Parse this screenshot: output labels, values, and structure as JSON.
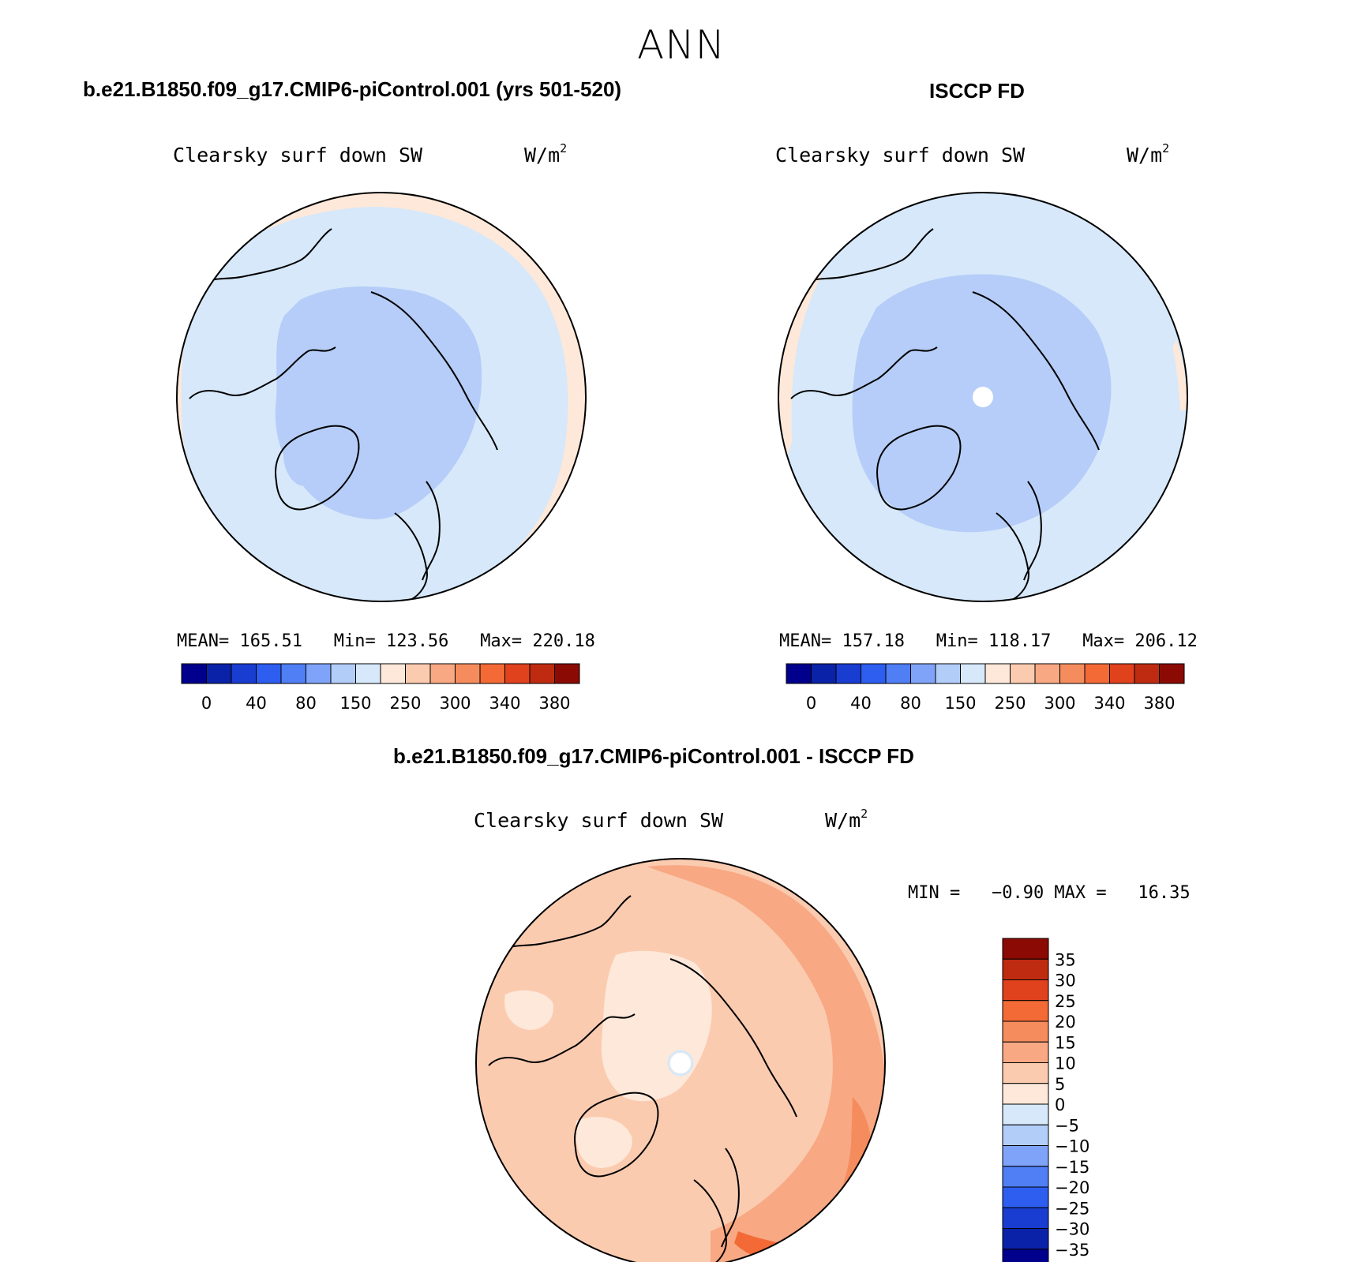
{
  "season": "ANN",
  "colors": {
    "map_bg_light": "#d6e8fa",
    "map_polar": "#b5cdf8",
    "map_rim": "#fde8d9",
    "diff_base": "#fbcbb0",
    "diff_light": "#fde8d9",
    "diff_mid": "#f8a883",
    "diff_strong": "#f58c5e",
    "diff_stronger": "#f36a36"
  },
  "panels": [
    {
      "title": "b.e21.B1850.f09_g17.CMIP6-piControl.001 (yrs 501-520)",
      "variable": "Clearsky surf down SW",
      "units": "W/m",
      "units_sup": "2",
      "mean_label": "MEAN=",
      "mean": "165.51",
      "min_label": "Min=",
      "min": "123.56",
      "max_label": "Max=",
      "max": "220.18"
    },
    {
      "title": "ISCCP FD",
      "variable": "Clearsky surf down SW",
      "units": "W/m",
      "units_sup": "2",
      "mean_label": "MEAN=",
      "mean": "157.18",
      "min_label": "Min=",
      "min": "118.17",
      "max_label": "Max=",
      "max": "206.12"
    }
  ],
  "diff_panel": {
    "title": "b.e21.B1850.f09_g17.CMIP6-piControl.001 - ISCCP FD",
    "variable": "Clearsky surf down SW",
    "units": "W/m",
    "units_sup": "2",
    "minmax_text": "MIN =   −0.90 MAX =   16.35"
  },
  "chart_data": [
    {
      "type": "heatmap",
      "projection": "north polar stereographic",
      "title": "b.e21.B1850.f09_g17.CMIP6-piControl.001 (yrs 501-520)",
      "variable": "Clearsky surf down SW",
      "units": "W/m2",
      "stats": {
        "mean": 165.51,
        "min": 123.56,
        "max": 220.18
      },
      "colorbar": {
        "orientation": "horizontal",
        "colors": [
          "#00008c",
          "#0a22a8",
          "#1a3dd1",
          "#2d5ef0",
          "#4f7ef5",
          "#7fa3f8",
          "#b3cdf9",
          "#d6e8fa",
          "#fde8d9",
          "#fbcbb0",
          "#f8a883",
          "#f58c5e",
          "#f36a36",
          "#e0421e",
          "#bf2b10",
          "#8c0a04"
        ],
        "tick_labels": [
          "0",
          "40",
          "80",
          "150",
          "250",
          "300",
          "340",
          "380"
        ]
      }
    },
    {
      "type": "heatmap",
      "projection": "north polar stereographic",
      "title": "ISCCP FD",
      "variable": "Clearsky surf down SW",
      "units": "W/m2",
      "stats": {
        "mean": 157.18,
        "min": 118.17,
        "max": 206.12
      },
      "colorbar": {
        "orientation": "horizontal",
        "colors": [
          "#00008c",
          "#0a22a8",
          "#1a3dd1",
          "#2d5ef0",
          "#4f7ef5",
          "#7fa3f8",
          "#b3cdf9",
          "#d6e8fa",
          "#fde8d9",
          "#fbcbb0",
          "#f8a883",
          "#f58c5e",
          "#f36a36",
          "#e0421e",
          "#bf2b10",
          "#8c0a04"
        ],
        "tick_labels": [
          "0",
          "40",
          "80",
          "150",
          "250",
          "300",
          "340",
          "380"
        ]
      }
    },
    {
      "type": "heatmap",
      "projection": "north polar stereographic",
      "title": "b.e21.B1850.f09_g17.CMIP6-piControl.001 - ISCCP FD",
      "variable": "Clearsky surf down SW",
      "units": "W/m2",
      "stats": {
        "min": -0.9,
        "max": 16.35
      },
      "colorbar": {
        "orientation": "vertical",
        "colors_top_to_bottom": [
          "#8c0a04",
          "#bf2b10",
          "#e0421e",
          "#f36a36",
          "#f58c5e",
          "#f8a883",
          "#fbcbb0",
          "#fde8d9",
          "#d6e8fa",
          "#b3cdf9",
          "#7fa3f8",
          "#4f7ef5",
          "#2d5ef0",
          "#1a3dd1",
          "#0a22a8",
          "#00008c"
        ],
        "tick_labels_top_to_bottom": [
          "35",
          "30",
          "25",
          "20",
          "15",
          "10",
          "5",
          "0",
          "−5",
          "−10",
          "−15",
          "−20",
          "−25",
          "−30",
          "−35"
        ]
      }
    }
  ]
}
